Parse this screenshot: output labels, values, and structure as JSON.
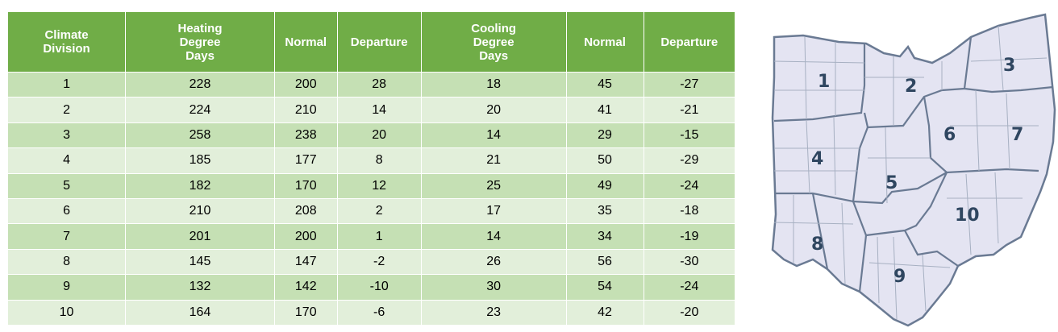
{
  "table": {
    "headers": [
      "Climate\nDivision",
      "Heating\nDegree\nDays",
      "Normal",
      "Departure",
      "Cooling\nDegree\nDays",
      "Normal",
      "Departure"
    ],
    "rows": [
      [
        "1",
        "228",
        "200",
        "28",
        "18",
        "45",
        "-27"
      ],
      [
        "2",
        "224",
        "210",
        "14",
        "20",
        "41",
        "-21"
      ],
      [
        "3",
        "258",
        "238",
        "20",
        "14",
        "29",
        "-15"
      ],
      [
        "4",
        "185",
        "177",
        "8",
        "21",
        "50",
        "-29"
      ],
      [
        "5",
        "182",
        "170",
        "12",
        "25",
        "49",
        "-24"
      ],
      [
        "6",
        "210",
        "208",
        "2",
        "17",
        "35",
        "-18"
      ],
      [
        "7",
        "201",
        "200",
        "1",
        "14",
        "34",
        "-19"
      ],
      [
        "8",
        "145",
        "147",
        "-2",
        "26",
        "56",
        "-30"
      ],
      [
        "9",
        "132",
        "142",
        "-10",
        "30",
        "54",
        "-24"
      ],
      [
        "10",
        "164",
        "170",
        "-6",
        "23",
        "42",
        "-20"
      ]
    ]
  },
  "map": {
    "division_labels": [
      "1",
      "2",
      "3",
      "4",
      "5",
      "6",
      "7",
      "8",
      "9",
      "10"
    ],
    "fill_color": "#e4e4f2",
    "border_color": "#6a7a93",
    "label_color": "#2f4660"
  }
}
